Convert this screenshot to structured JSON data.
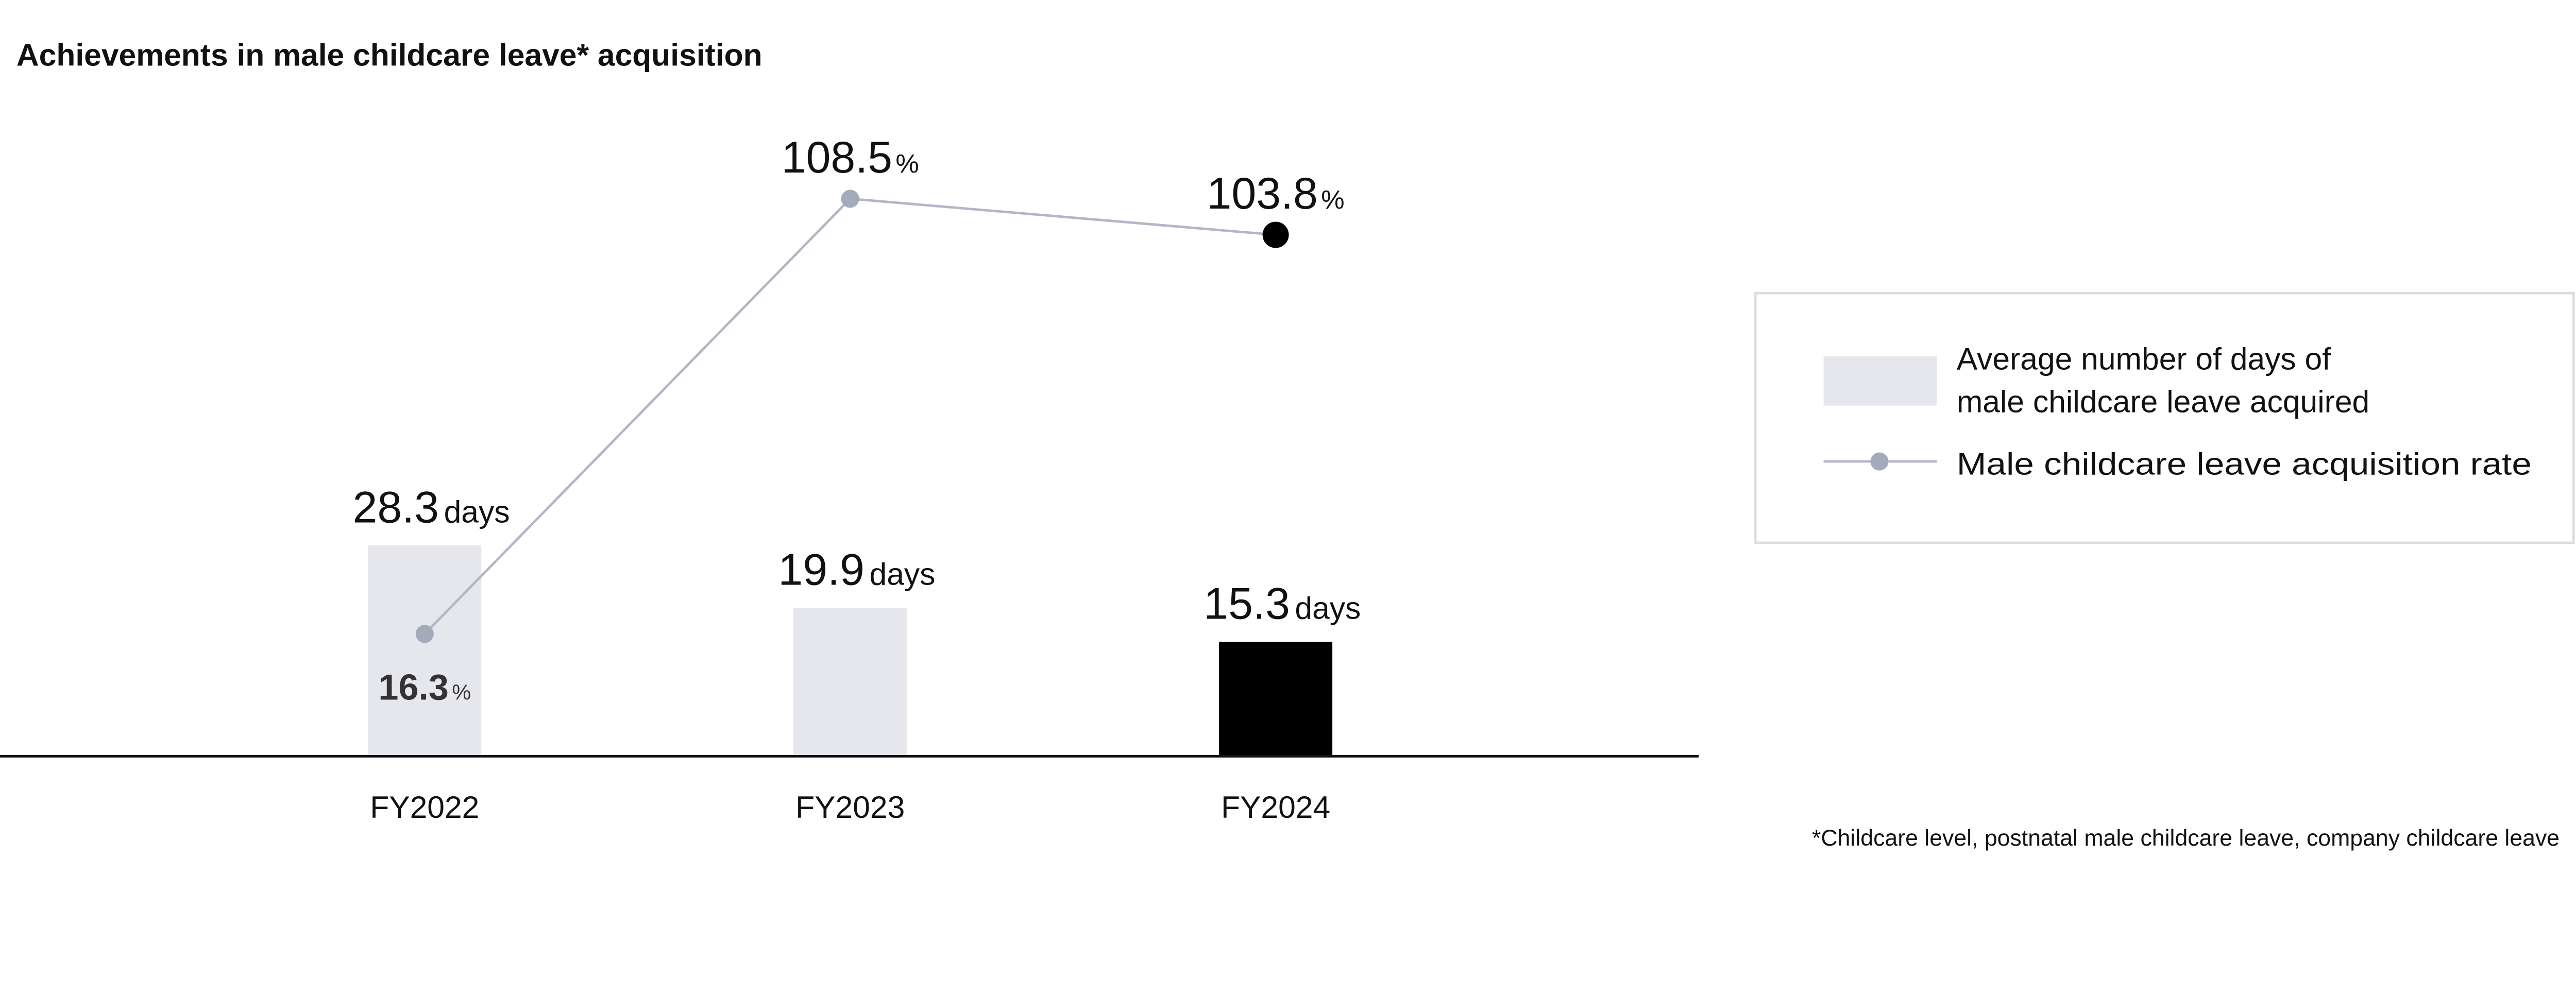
{
  "chart_data": {
    "type": "bar+line",
    "title": "Achievements in male childcare leave* acquisition",
    "categories": [
      "FY2022",
      "FY2023",
      "FY2024"
    ],
    "series": [
      {
        "name": "Average number of days of male childcare leave acquired",
        "type": "bar",
        "values": [
          28.3,
          19.9,
          15.3
        ],
        "unit": "days",
        "labels": [
          "28.3",
          "19.9",
          "15.3"
        ]
      },
      {
        "name": "Male childcare leave acquisition rate",
        "type": "line",
        "values": [
          16.3,
          108.5,
          103.8
        ],
        "unit": "%",
        "labels": [
          "16.3",
          "108.5",
          "103.8"
        ]
      }
    ],
    "legend": {
      "placement": "right",
      "items": [
        "Average number of days of",
        "male childcare leave acquired",
        "Male childcare leave acquisition rate"
      ]
    },
    "footnote": "*Childcare level, postnatal male childcare leave, company childcare leave",
    "grid": false,
    "colors": {
      "bar": "#e6e7ec",
      "bar_highlight": "#000000",
      "line": "#b3b6c6",
      "marker": "#a3aaba",
      "marker_highlight": "#000000"
    }
  }
}
